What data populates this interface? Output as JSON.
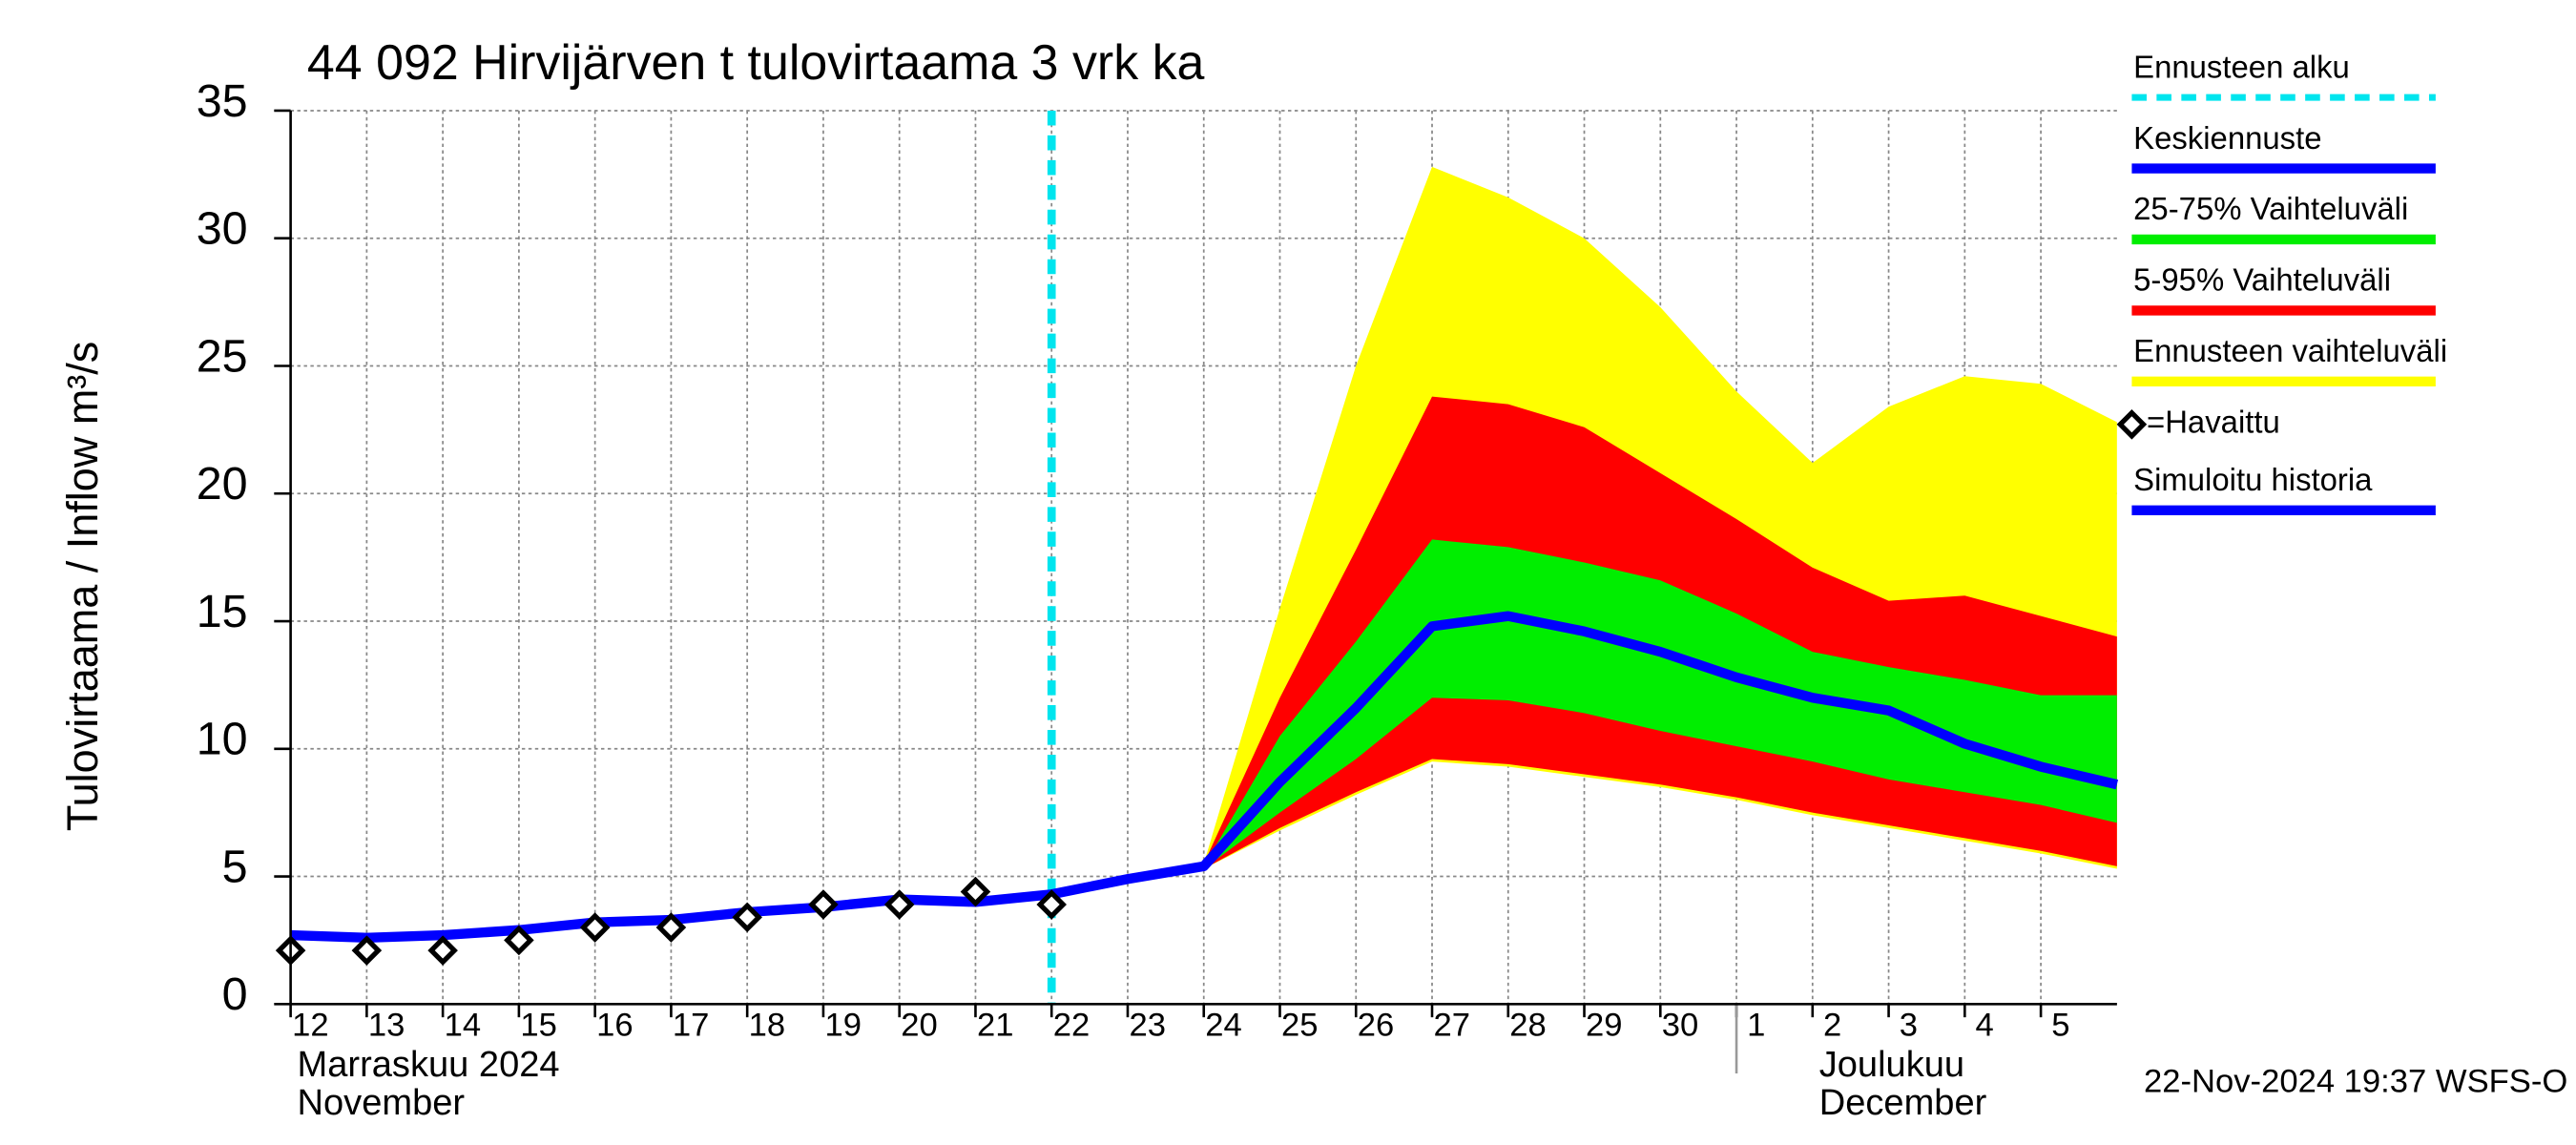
{
  "chart_data": {
    "type": "line",
    "title": "44 092 Hirvijärven t tulovirtaama 3 vrk ka",
    "y_label": "Tulovirtaama / Inflow    m³/s",
    "timestamp": "22-Nov-2024 19:37 WSFS-O",
    "xlim": [
      0,
      24
    ],
    "ylim": [
      0,
      35
    ],
    "yticks": [
      0,
      5,
      10,
      15,
      20,
      25,
      30,
      35
    ],
    "xticks": [
      {
        "value": 0,
        "label": "12"
      },
      {
        "value": 1,
        "label": "13"
      },
      {
        "value": 2,
        "label": "14"
      },
      {
        "value": 3,
        "label": "15"
      },
      {
        "value": 4,
        "label": "16"
      },
      {
        "value": 5,
        "label": "17"
      },
      {
        "value": 6,
        "label": "18"
      },
      {
        "value": 7,
        "label": "19"
      },
      {
        "value": 8,
        "label": "20"
      },
      {
        "value": 9,
        "label": "21"
      },
      {
        "value": 10,
        "label": "22"
      },
      {
        "value": 11,
        "label": "23"
      },
      {
        "value": 12,
        "label": "24"
      },
      {
        "value": 13,
        "label": "25"
      },
      {
        "value": 14,
        "label": "26"
      },
      {
        "value": 15,
        "label": "27"
      },
      {
        "value": 16,
        "label": "28"
      },
      {
        "value": 17,
        "label": "29"
      },
      {
        "value": 18,
        "label": "30"
      },
      {
        "value": 19,
        "label": "1"
      },
      {
        "value": 20,
        "label": "2"
      },
      {
        "value": 21,
        "label": "3"
      },
      {
        "value": 22,
        "label": "4"
      },
      {
        "value": 23,
        "label": "5"
      }
    ],
    "grid": true,
    "months": [
      {
        "x": 0,
        "label": "Marraskuu 2024",
        "label2": "November"
      },
      {
        "x": 20,
        "label": "Joulukuu",
        "label2": "December"
      }
    ],
    "month_separators": [
      19
    ],
    "series": [
      {
        "name": "Ennusteen alku",
        "kind": "vline",
        "color": "#00e5ee",
        "x": 10
      },
      {
        "name": "Keskiennuste",
        "kind": "line",
        "color": "#0000ff",
        "x": [
          10,
          11,
          12,
          13,
          14,
          15,
          16,
          17,
          18,
          19,
          20,
          21,
          22,
          23,
          24
        ],
        "values": [
          4.3,
          4.9,
          5.4,
          8.7,
          11.6,
          14.8,
          15.2,
          14.6,
          13.8,
          12.8,
          12.0,
          11.5,
          10.2,
          9.3,
          8.6
        ]
      },
      {
        "name": "25-75% Vaihteluväli",
        "kind": "band",
        "color": "#00ee00",
        "x": [
          11,
          12,
          13,
          14,
          15,
          16,
          17,
          18,
          19,
          20,
          21,
          22,
          23,
          24
        ],
        "high": [
          4.95,
          5.4,
          10.5,
          14.2,
          18.2,
          17.9,
          17.3,
          16.6,
          15.3,
          13.8,
          13.2,
          12.7,
          12.1,
          12.1
        ],
        "low": [
          4.95,
          5.3,
          7.5,
          9.6,
          12.0,
          11.9,
          11.4,
          10.7,
          10.1,
          9.5,
          8.8,
          8.3,
          7.8,
          7.1
        ]
      },
      {
        "name": "5-95% Vaihteluväli",
        "kind": "band",
        "color": "#ff0000",
        "x": [
          11,
          12,
          13,
          14,
          15,
          16,
          17,
          18,
          19,
          20,
          21,
          22,
          23,
          24
        ],
        "high": [
          5.05,
          5.5,
          12.0,
          17.8,
          23.8,
          23.5,
          22.6,
          20.8,
          19.0,
          17.1,
          15.8,
          16.0,
          15.2,
          14.4
        ],
        "low": [
          4.9,
          5.3,
          6.9,
          8.3,
          9.6,
          9.4,
          9.0,
          8.6,
          8.1,
          7.5,
          7.0,
          6.5,
          6.0,
          5.4
        ]
      },
      {
        "name": "Ennusteen vaihteluväli",
        "kind": "band",
        "color": "#ffff00",
        "x": [
          11,
          12,
          13,
          14,
          15,
          16,
          17,
          18,
          19,
          20,
          21,
          22,
          23,
          24
        ],
        "high": [
          5.05,
          5.5,
          15.5,
          25.0,
          32.8,
          31.6,
          30.0,
          27.3,
          24.0,
          21.2,
          23.4,
          24.6,
          24.3,
          22.8
        ],
        "low": [
          4.9,
          5.3,
          6.8,
          8.2,
          9.5,
          9.3,
          8.9,
          8.5,
          8.0,
          7.4,
          6.9,
          6.4,
          5.9,
          5.3
        ]
      },
      {
        "name": "=Havaittu",
        "kind": "marker",
        "color": "#000000",
        "x": [
          0,
          1,
          2,
          3,
          4,
          5,
          6,
          7,
          8,
          9,
          10
        ],
        "values": [
          2.1,
          2.1,
          2.1,
          2.5,
          3.0,
          3.0,
          3.4,
          3.9,
          3.9,
          4.4,
          3.9
        ]
      },
      {
        "name": "Simuloitu historia",
        "kind": "line",
        "color": "#0000ff",
        "x": [
          0,
          1,
          2,
          3,
          4,
          5,
          6,
          7,
          8,
          9,
          10
        ],
        "values": [
          2.7,
          2.6,
          2.7,
          2.9,
          3.2,
          3.3,
          3.6,
          3.8,
          4.1,
          4.0,
          4.3
        ]
      }
    ]
  }
}
